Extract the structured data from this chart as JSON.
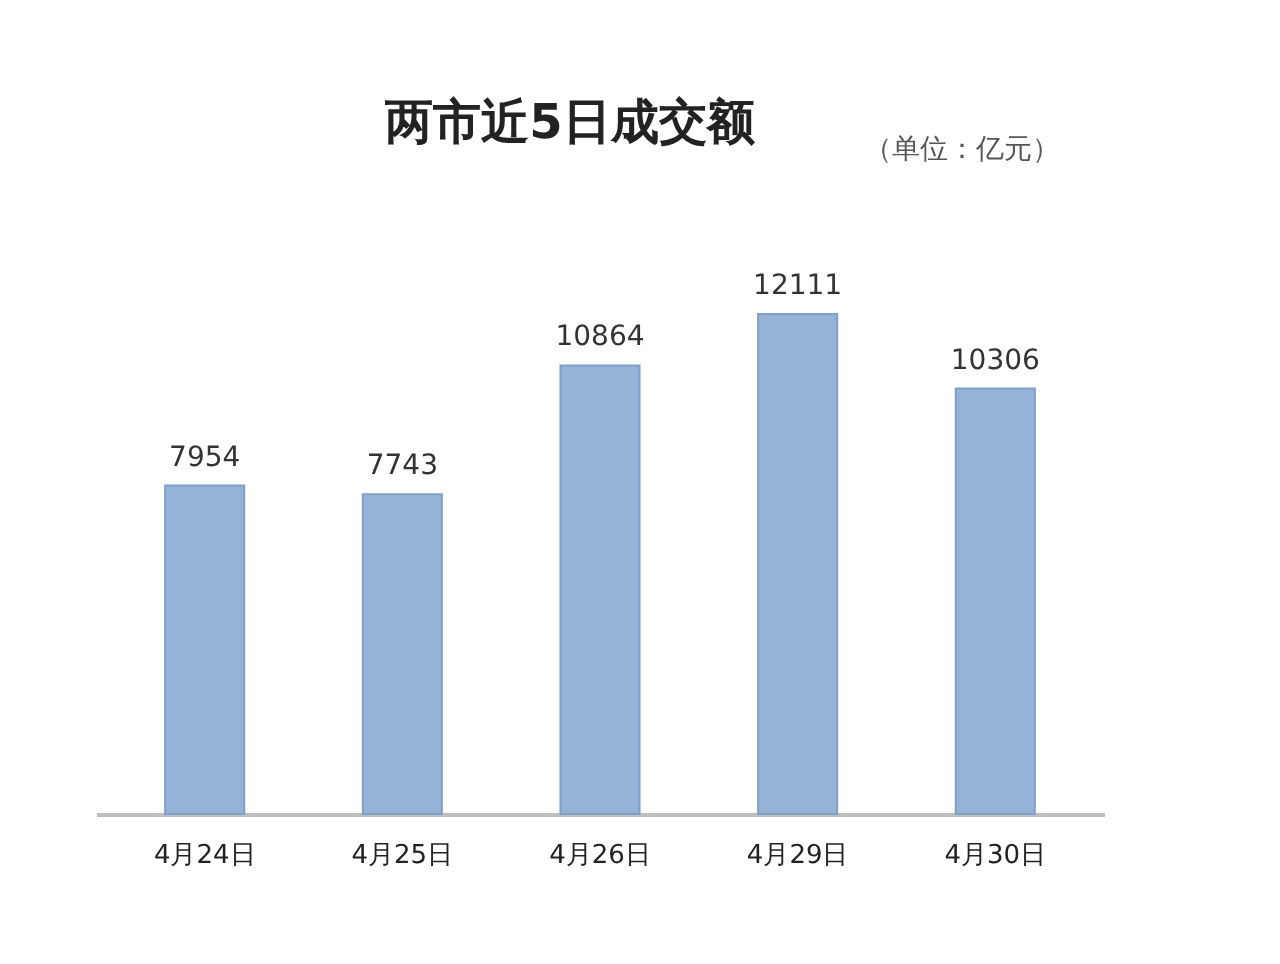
{
  "chart_data": {
    "type": "bar",
    "title": "两市近5日成交额",
    "annotations": [
      "（单位：亿元）"
    ],
    "categories": [
      "4月24日",
      "4月25日",
      "4月26日",
      "4月29日",
      "4月30日"
    ],
    "values": [
      7954,
      7743,
      10864,
      12111,
      10306
    ],
    "color": "#95b3d7",
    "data_labels": true
  }
}
